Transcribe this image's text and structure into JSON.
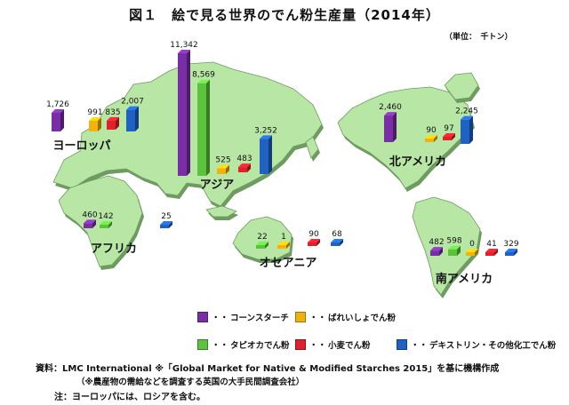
{
  "title": "図１　絵で見る世界のでん粉生産量（2014年）",
  "unit": "（単位：　千トン）",
  "colors": {
    "コーンスターチ": "#7a2ea6",
    "ばれいしょでん粉": "#f2b20e",
    "タピオカでん粉": "#5cc43c",
    "小麦でん粉": "#e0202a",
    "デキストリン・その他化工でん粉": "#1f62c4",
    "land": "#b8e6a4",
    "land_edge": "#6e9c60"
  },
  "legend": [
    {
      "series": "コーンスターチ",
      "label": "コーンスターチ"
    },
    {
      "series": "ばれいしょでん粉",
      "label": "ばれいしょでん粉"
    },
    {
      "series": "タピオカでん粉",
      "label": "タピオカでん粉"
    },
    {
      "series": "小麦でん粉",
      "label": "小麦でん粉"
    },
    {
      "series": "デキストリン・その他化工でん粉",
      "label": "デキストリン・その他化工でん粉"
    }
  ],
  "chart_data": {
    "type": "bar",
    "title": "絵で見る世界のでん粉生産量（2014年）",
    "unit": "千トン",
    "series_order": [
      "コーンスターチ",
      "ばれいしょでん粉",
      "タピオカでん粉",
      "小麦でん粉",
      "デキストリン・その他化工でん粉"
    ],
    "regions": [
      {
        "name": "ヨーロッパ",
        "values": {
          "コーンスターチ": 1726,
          "ばれいしょでん粉": 991,
          "小麦でん粉": 835,
          "デキストリン・その他化工でん粉": 2007
        }
      },
      {
        "name": "アジア",
        "values": {
          "コーンスターチ": 11342,
          "タピオカでん粉": 8569,
          "ばれいしょでん粉": 525,
          "小麦でん粉": 483,
          "デキストリン・その他化工でん粉": 3252
        }
      },
      {
        "name": "北アメリカ",
        "values": {
          "コーンスターチ": 2460,
          "ばれいしょでん粉": 90,
          "小麦でん粉": 97,
          "デキストリン・その他化工でん粉": 2245
        }
      },
      {
        "name": "アフリカ",
        "values": {
          "コーンスターチ": 460,
          "タピオカでん粉": 142,
          "デキストリン・その他化工でん粉": 25
        }
      },
      {
        "name": "オセアニア",
        "values": {
          "タピオカでん粉": 22,
          "ばれいしょでん粉": 1,
          "小麦でん粉": 90,
          "デキストリン・その他化工でん粉": 68
        }
      },
      {
        "name": "南アメリカ",
        "values": {
          "コーンスターチ": 482,
          "タピオカでん粉": 598,
          "ばれいしょでん粉": 0,
          "小麦でん粉": 41,
          "デキストリン・その他化工でん粉": 329
        }
      }
    ]
  },
  "source": "資料：LMC International ※「Global Market for Native & Modified Starches 2015」を基に機構作成",
  "source_note": "（※農産物の需給などを調査する英国の大手民間調査会社）",
  "note": "注：ヨーロッパには、ロシアを含む。"
}
